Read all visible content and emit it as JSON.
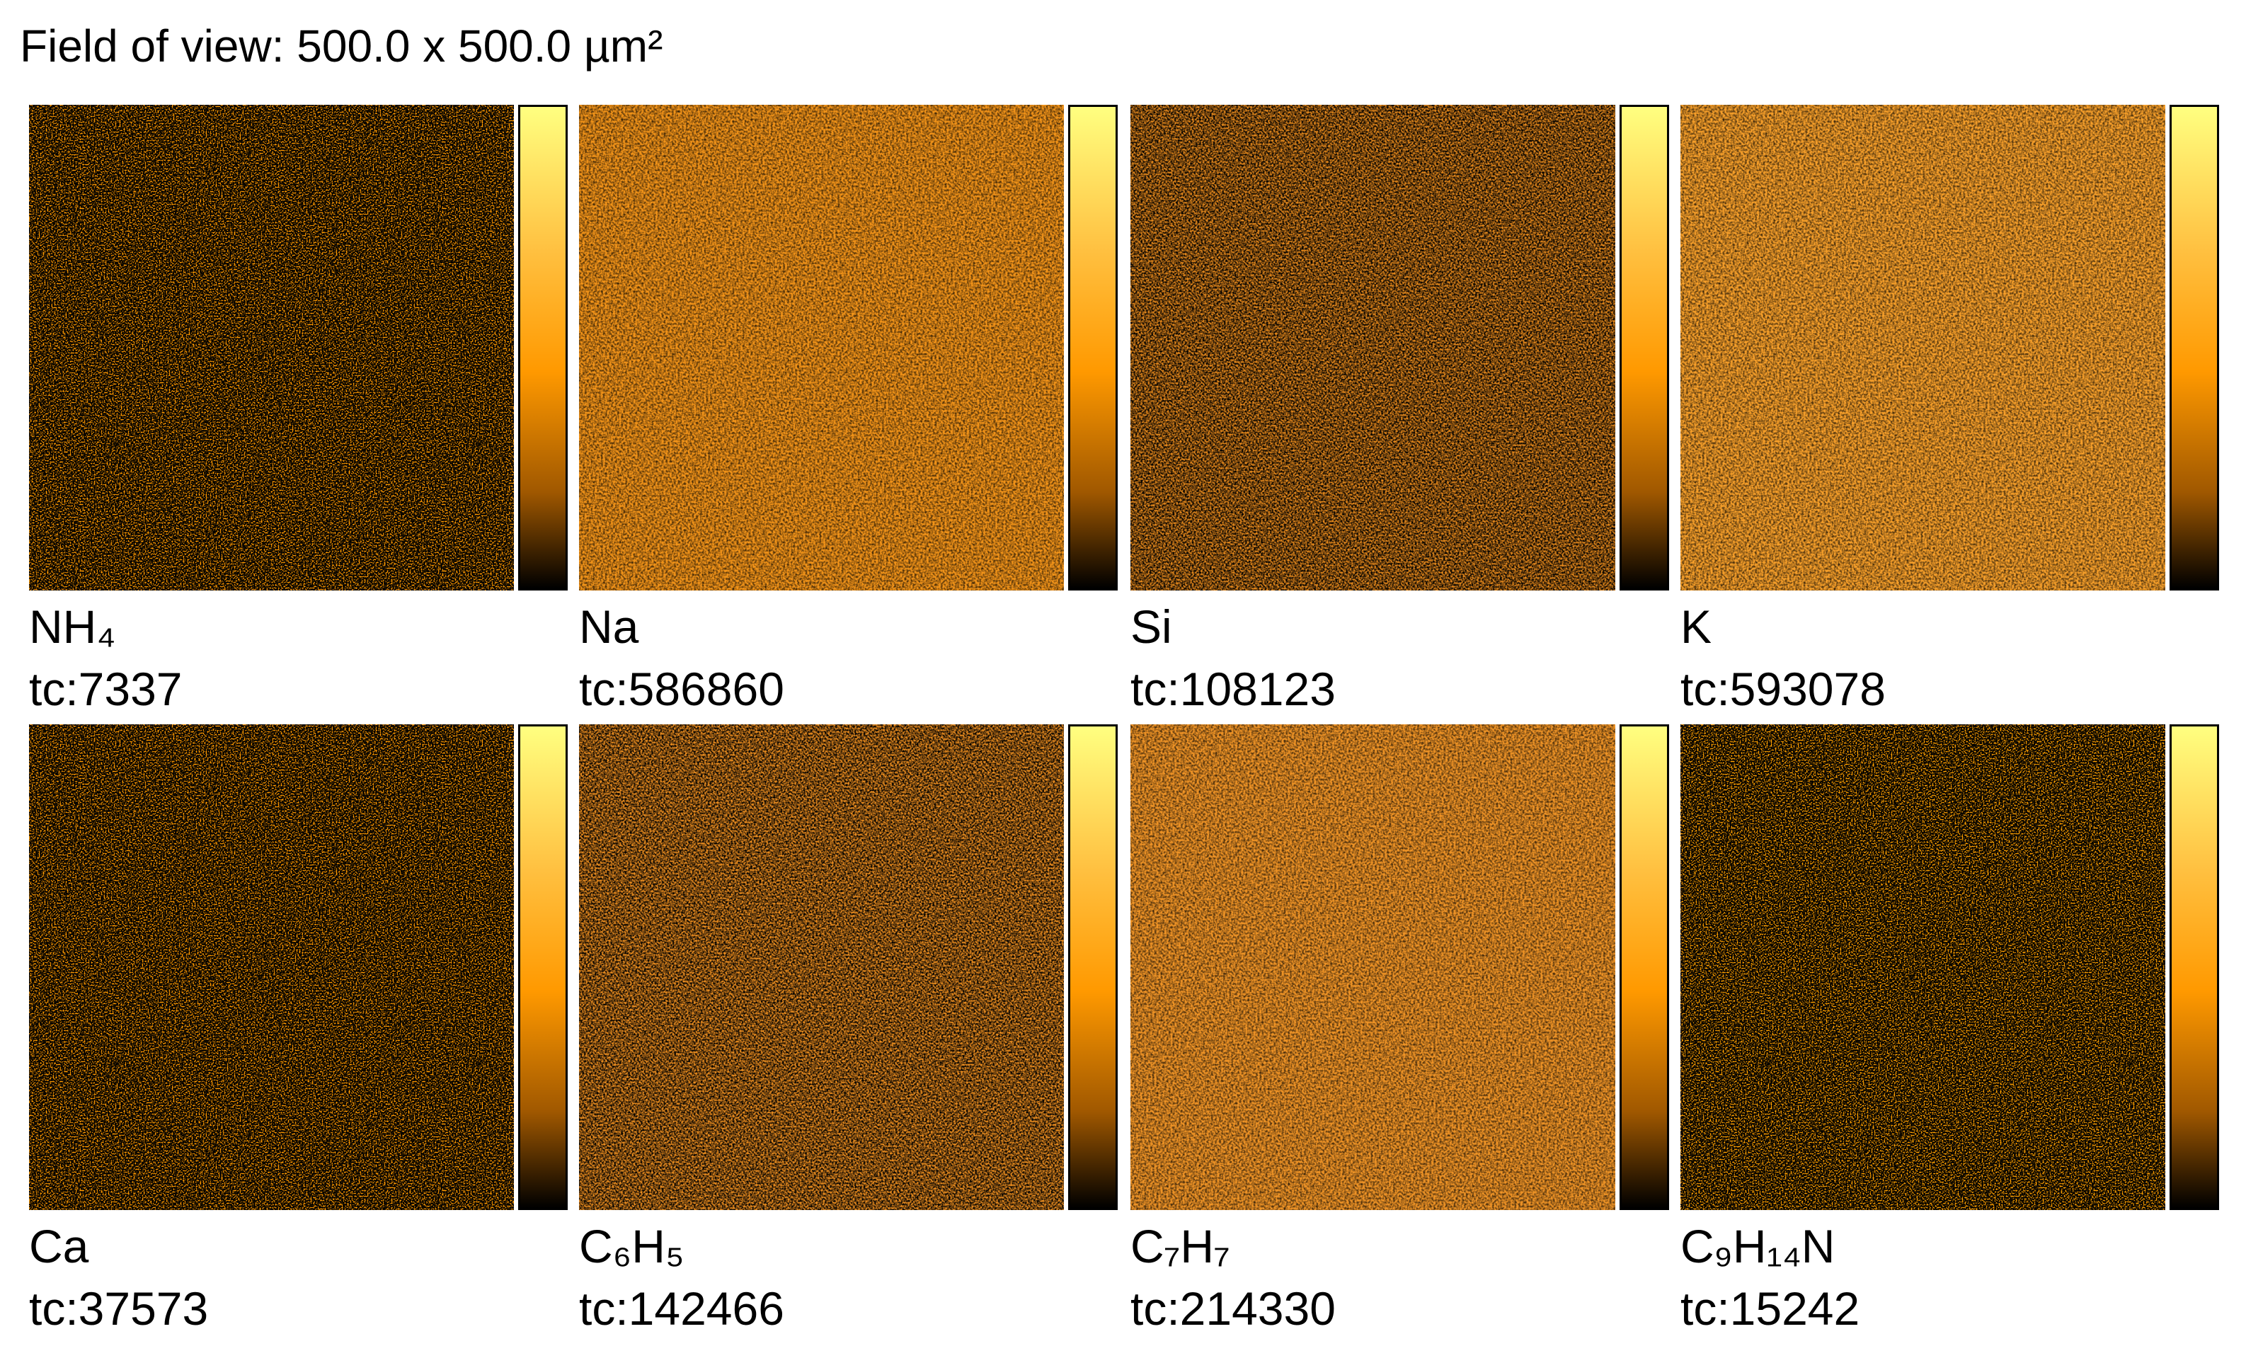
{
  "header": {
    "title": "Field of view: 500.0 x 500.0 µm²"
  },
  "panels": [
    {
      "label": "NH₄",
      "tc": "tc:7337"
    },
    {
      "label": "Na",
      "tc": "tc:586860"
    },
    {
      "label": "Si",
      "tc": "tc:108123"
    },
    {
      "label": "K",
      "tc": "tc:593078"
    },
    {
      "label": "Ca",
      "tc": "tc:37573"
    },
    {
      "label": "C₆H₅",
      "tc": "tc:142466"
    },
    {
      "label": "C₇H₇",
      "tc": "tc:214330"
    },
    {
      "label": "C₉H₁₄N",
      "tc": "tc:15242"
    }
  ]
}
